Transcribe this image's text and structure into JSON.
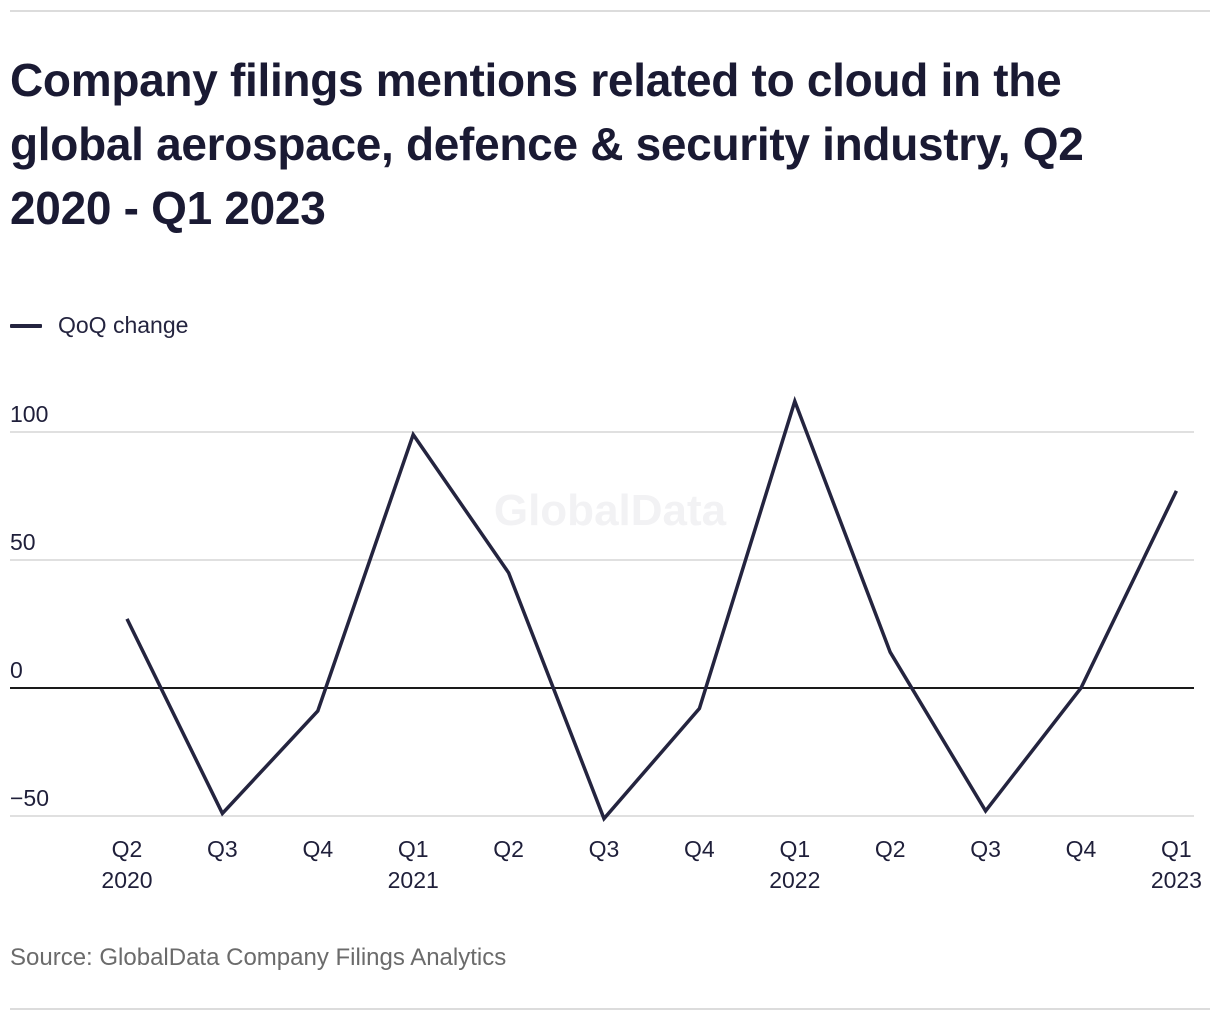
{
  "title": "Company filings mentions related to cloud in the global aerospace, defence & security industry, Q2 2020 - Q1 2023",
  "source": "Source: GlobalData Company Filings Analytics",
  "watermark": "GlobalData",
  "colors": {
    "line": "#24243f",
    "grid": "#d6d6d6",
    "zero": "#1a1a1a",
    "text": "#1f1f3a"
  },
  "chart_data": {
    "type": "line",
    "title": "Company filings mentions related to cloud in the global aerospace, defence & security industry, Q2 2020 - Q1 2023",
    "xlabel": "",
    "ylabel": "",
    "categories": [
      "Q2 2020",
      "Q3",
      "Q4",
      "Q1 2021",
      "Q2",
      "Q3",
      "Q4",
      "Q1 2022",
      "Q2",
      "Q3",
      "Q4",
      "Q1 2023"
    ],
    "x_ticks": [
      {
        "line1": "Q2",
        "line2": "2020"
      },
      {
        "line1": "Q3",
        "line2": ""
      },
      {
        "line1": "Q4",
        "line2": ""
      },
      {
        "line1": "Q1",
        "line2": "2021"
      },
      {
        "line1": "Q2",
        "line2": ""
      },
      {
        "line1": "Q3",
        "line2": ""
      },
      {
        "line1": "Q4",
        "line2": ""
      },
      {
        "line1": "Q1",
        "line2": "2022"
      },
      {
        "line1": "Q2",
        "line2": ""
      },
      {
        "line1": "Q3",
        "line2": ""
      },
      {
        "line1": "Q4",
        "line2": ""
      },
      {
        "line1": "Q1",
        "line2": "2023"
      }
    ],
    "series": [
      {
        "name": "QoQ change",
        "values": [
          27,
          -49,
          -9,
          99,
          45,
          -51,
          -8,
          112,
          14,
          -48,
          0,
          77
        ]
      }
    ],
    "ylim": [
      -50,
      100
    ],
    "y_ticks": [
      100,
      50,
      0,
      -50
    ],
    "y_tick_labels": [
      "100",
      "50",
      "0",
      "−50"
    ],
    "grid": true,
    "legend": "top-left"
  }
}
